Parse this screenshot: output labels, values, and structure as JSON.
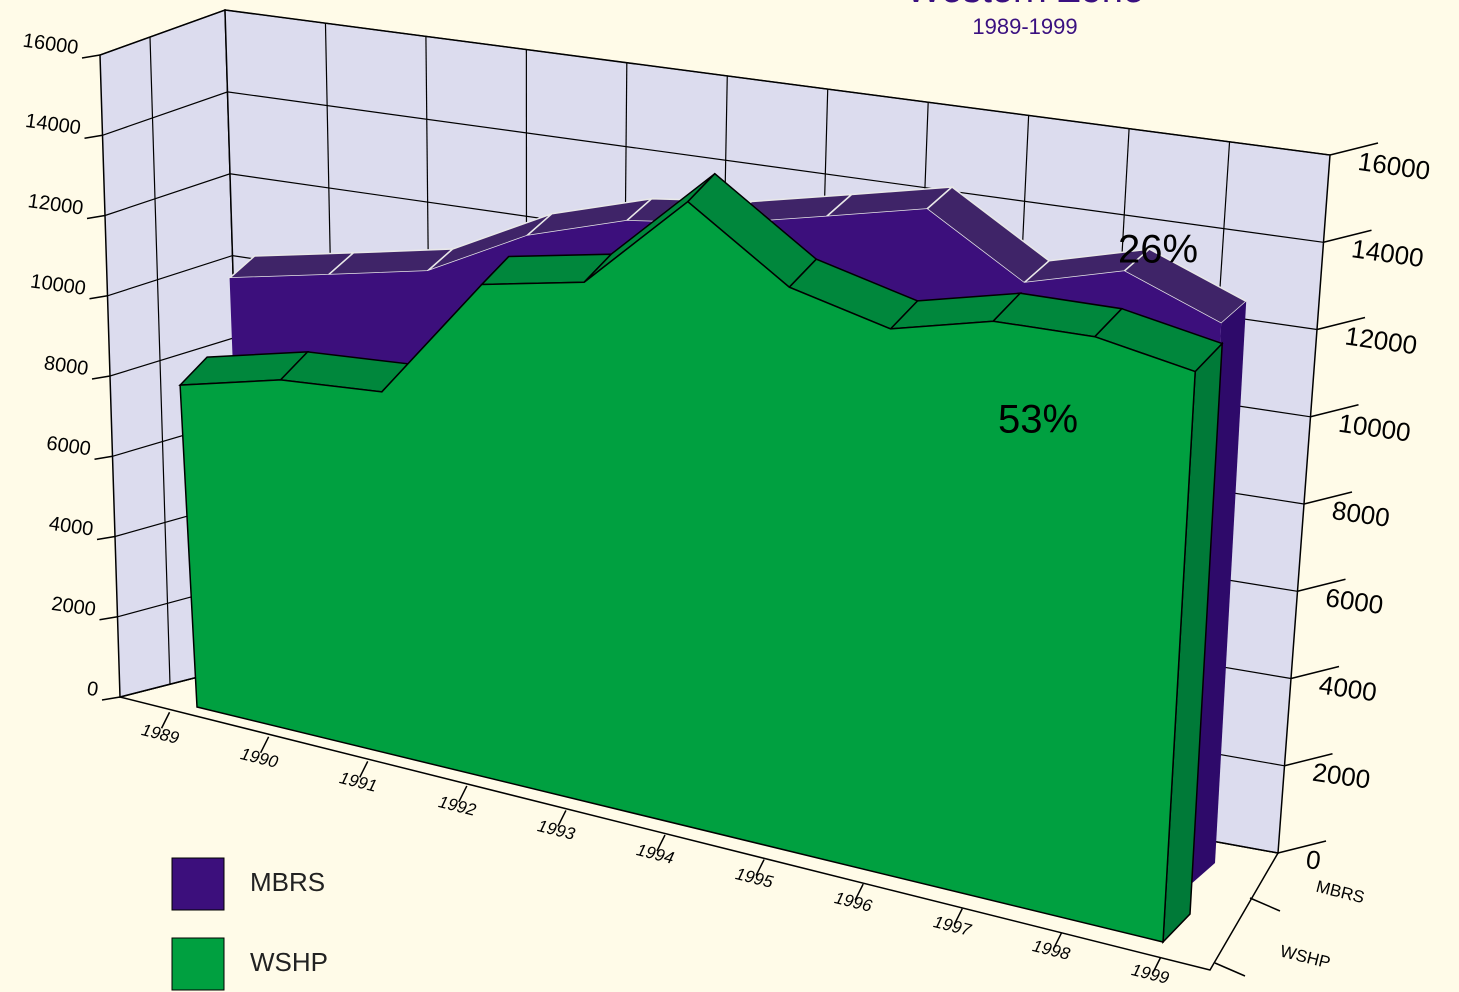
{
  "chart_data": {
    "type": "area3d",
    "title": "Western Zone",
    "subtitle": "1989-1999",
    "categories": [
      "1989",
      "1990",
      "1991",
      "1992",
      "1993",
      "1994",
      "1995",
      "1996",
      "1997",
      "1998",
      "1999"
    ],
    "series": [
      {
        "name": "MBRS",
        "color": "#3c0f7c",
        "values": [
          10300,
          10500,
          10700,
          11600,
          12000,
          12000,
          12200,
          12400,
          11000,
          11300,
          10400
        ]
      },
      {
        "name": "WSHP",
        "color": "#00a040",
        "values": [
          7700,
          8000,
          7900,
          10300,
          10400,
          12000,
          10400,
          9700,
          9900,
          9700,
          9200
        ]
      }
    ],
    "ylim": [
      0,
      16000
    ],
    "yticks": [
      0,
      2000,
      4000,
      6000,
      8000,
      10000,
      12000,
      14000,
      16000
    ],
    "annotations": [
      "26%",
      "53%"
    ],
    "grid": true,
    "legend": "bottom-left"
  }
}
